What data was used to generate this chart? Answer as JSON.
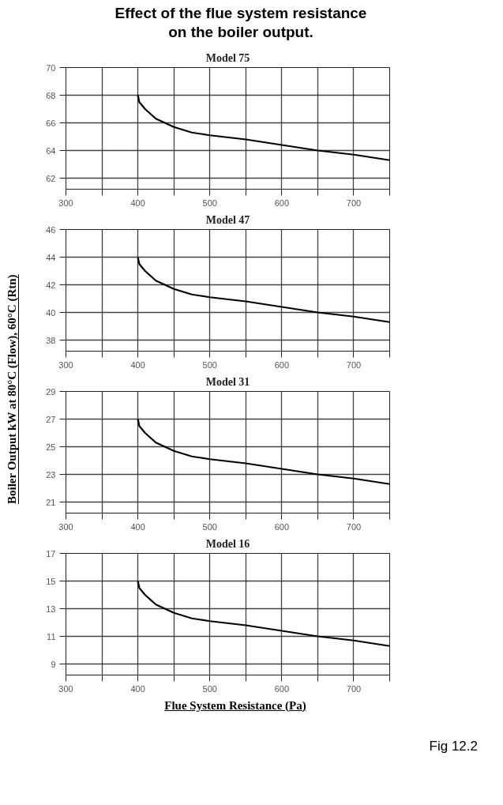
{
  "chart_data": [
    {
      "type": "line",
      "title": "Effect of the flue system resistance\non the boiler output.",
      "subtitle": "Model 75",
      "x": [
        400,
        402,
        410,
        425,
        450,
        475,
        500,
        550,
        600,
        650,
        700,
        750
      ],
      "series": [
        {
          "color": "#000000",
          "values": [
            68,
            67.5,
            67.0,
            66.3,
            65.7,
            65.3,
            65.1,
            64.8,
            64.4,
            64.0,
            63.7,
            63.3
          ]
        }
      ],
      "xlim": [
        300,
        750
      ],
      "xticks": [
        300,
        {
          "value": 350,
          "label": null
        },
        400,
        {
          "value": 450,
          "label": null
        },
        500,
        {
          "value": 550,
          "label": null
        },
        600,
        {
          "value": 650,
          "label": null
        },
        700,
        {
          "value": 750,
          "label": null
        }
      ],
      "ylim": [
        61.2,
        70
      ],
      "yticks": [
        62,
        64,
        66,
        68,
        70
      ],
      "grid": true
    },
    {
      "type": "line",
      "title": "Model 47",
      "ylabel": "Boiler Output  kW at 80°C (Flow), 60°C (Rtn)",
      "x": [
        400,
        402,
        410,
        425,
        450,
        475,
        500,
        550,
        600,
        650,
        700,
        750
      ],
      "series": [
        {
          "color": "#000000",
          "values": [
            44,
            43.5,
            43.0,
            42.3,
            41.7,
            41.3,
            41.1,
            40.8,
            40.4,
            40.0,
            39.7,
            39.3
          ]
        }
      ],
      "xlim": [
        300,
        750
      ],
      "xticks": [
        300,
        {
          "value": 350,
          "label": null
        },
        400,
        {
          "value": 450,
          "label": null
        },
        500,
        {
          "value": 550,
          "label": null
        },
        600,
        {
          "value": 650,
          "label": null
        },
        700,
        {
          "value": 750,
          "label": null
        }
      ],
      "ylim": [
        37.2,
        46
      ],
      "yticks": [
        38,
        40,
        42,
        44,
        46
      ],
      "grid": true
    },
    {
      "type": "line",
      "title": "Model 31",
      "x": [
        400,
        402,
        410,
        425,
        450,
        475,
        500,
        550,
        600,
        650,
        700,
        750
      ],
      "series": [
        {
          "color": "#000000",
          "values": [
            27,
            26.5,
            26.0,
            25.3,
            24.7,
            24.3,
            24.1,
            23.8,
            23.4,
            23.0,
            22.7,
            22.3
          ]
        }
      ],
      "xlim": [
        300,
        750
      ],
      "xticks": [
        300,
        {
          "value": 350,
          "label": null
        },
        400,
        {
          "value": 450,
          "label": null
        },
        500,
        {
          "value": 550,
          "label": null
        },
        600,
        {
          "value": 650,
          "label": null
        },
        700,
        {
          "value": 750,
          "label": null
        }
      ],
      "ylim": [
        20.2,
        29
      ],
      "yticks": [
        21,
        23,
        25,
        27,
        29
      ],
      "grid": true
    },
    {
      "type": "line",
      "title": "Model 16",
      "xlabel": "Flue System Resistance (Pa)",
      "annotations": [
        "Fig 12.2"
      ],
      "x": [
        400,
        402,
        410,
        425,
        450,
        475,
        500,
        550,
        600,
        650,
        700,
        750
      ],
      "series": [
        {
          "color": "#000000",
          "values": [
            15,
            14.5,
            14.0,
            13.3,
            12.7,
            12.3,
            12.1,
            11.8,
            11.4,
            11.0,
            10.7,
            10.3
          ]
        }
      ],
      "xlim": [
        300,
        750
      ],
      "xticks": [
        300,
        {
          "value": 350,
          "label": null
        },
        400,
        {
          "value": 450,
          "label": null
        },
        500,
        {
          "value": 550,
          "label": null
        },
        600,
        {
          "value": 650,
          "label": null
        },
        700,
        {
          "value": 750,
          "label": null
        }
      ],
      "ylim": [
        8.2,
        17
      ],
      "yticks": [
        9,
        11,
        13,
        15,
        17
      ],
      "grid": true
    }
  ]
}
